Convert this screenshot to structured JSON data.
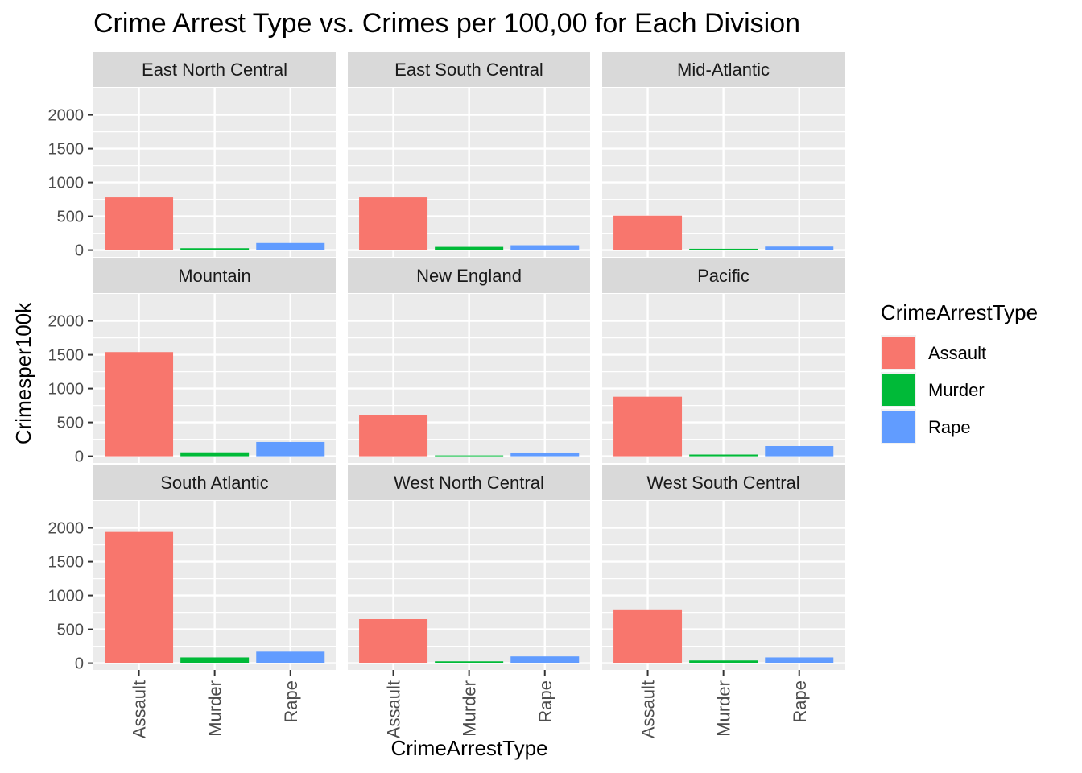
{
  "chart_data": {
    "type": "bar",
    "title": "Crime Arrest Type vs. Crimes per 100,00 for Each Division",
    "xlabel": "CrimeArrestType",
    "ylabel": "Crimesper100k",
    "categories": [
      "Assault",
      "Murder",
      "Rape"
    ],
    "y_ticks": [
      0,
      500,
      1000,
      1500,
      2000
    ],
    "y_tick_labels": [
      "0",
      "500",
      "1000",
      "1500",
      "2000"
    ],
    "ylim": [
      -100,
      2400
    ],
    "grid": true,
    "facet_layout": {
      "rows": 3,
      "cols": 3
    },
    "legend": {
      "title": "CrimeArrestType",
      "position": "right",
      "entries": [
        {
          "label": "Assault",
          "color": "#F8766D"
        },
        {
          "label": "Murder",
          "color": "#00BA38"
        },
        {
          "label": "Rape",
          "color": "#619CFF"
        }
      ]
    },
    "facets": [
      {
        "name": "East North Central",
        "values": [
          780,
          28,
          105
        ]
      },
      {
        "name": "East South Central",
        "values": [
          780,
          48,
          72
        ]
      },
      {
        "name": "Mid-Atlantic",
        "values": [
          510,
          20,
          52
        ]
      },
      {
        "name": "Mountain",
        "values": [
          1540,
          58,
          210
        ]
      },
      {
        "name": "New England",
        "values": [
          605,
          12,
          55
        ]
      },
      {
        "name": "Pacific",
        "values": [
          880,
          25,
          150
        ]
      },
      {
        "name": "South Atlantic",
        "values": [
          1940,
          85,
          170
        ]
      },
      {
        "name": "West North Central",
        "values": [
          650,
          28,
          100
        ]
      },
      {
        "name": "West South Central",
        "values": [
          795,
          40,
          85
        ]
      }
    ]
  }
}
